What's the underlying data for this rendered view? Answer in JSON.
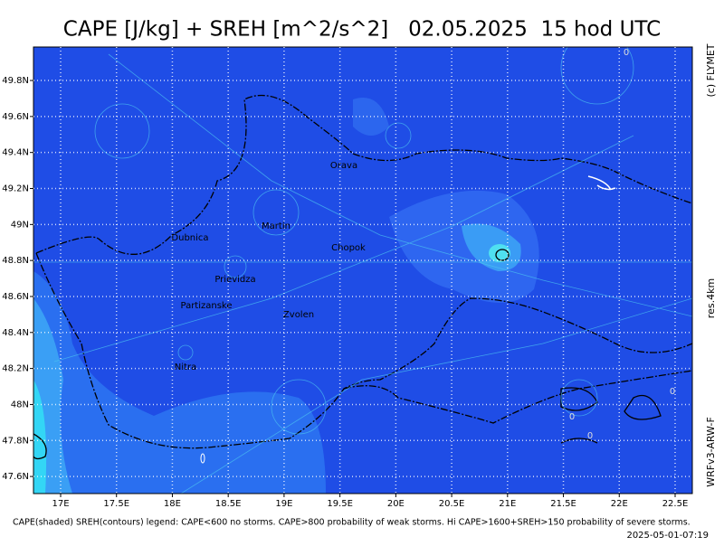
{
  "header": {
    "title": "CAPE [J/kg] + SREH [m^2/s^2]   02.05.2025  15 hod UTC"
  },
  "map": {
    "xlim": [
      16.757,
      22.654
    ],
    "ylim": [
      47.505,
      49.986
    ],
    "xticks": [
      {
        "value": 17,
        "label": "17E"
      },
      {
        "value": 17.5,
        "label": "17.5E"
      },
      {
        "value": 18,
        "label": "18E"
      },
      {
        "value": 18.5,
        "label": "18.5E"
      },
      {
        "value": 19,
        "label": "19E"
      },
      {
        "value": 19.5,
        "label": "19.5E"
      },
      {
        "value": 20,
        "label": "20E"
      },
      {
        "value": 20.5,
        "label": "20.5E"
      },
      {
        "value": 21,
        "label": "21E"
      },
      {
        "value": 21.5,
        "label": "21.5E"
      },
      {
        "value": 22,
        "label": "22E"
      },
      {
        "value": 22.5,
        "label": "22.5E"
      }
    ],
    "yticks": [
      {
        "value": 47.6,
        "label": "47.6N"
      },
      {
        "value": 47.8,
        "label": "47.8N"
      },
      {
        "value": 48,
        "label": "48N"
      },
      {
        "value": 48.2,
        "label": "48.2N"
      },
      {
        "value": 48.4,
        "label": "48.4N"
      },
      {
        "value": 48.6,
        "label": "48.6N"
      },
      {
        "value": 48.8,
        "label": "48.8N"
      },
      {
        "value": 49,
        "label": "49N"
      },
      {
        "value": 49.2,
        "label": "49.2N"
      },
      {
        "value": 49.4,
        "label": "49.4N"
      },
      {
        "value": 49.6,
        "label": "49.6N"
      },
      {
        "value": 49.8,
        "label": "49.8N"
      }
    ],
    "cities": [
      "Orava",
      "Martin",
      "Dubnica",
      "Chopok",
      "Prievidza",
      "Partizanske",
      "Zvolen",
      "Nitra"
    ],
    "contour_labels": [
      "0",
      "0",
      "0",
      "0"
    ]
  },
  "side": {
    "copyright": "(c) FLYMET",
    "resolution": "res.4km",
    "model": "WRFv3-ARW-F"
  },
  "footer": {
    "legend": "CAPE(shaded) SREH(contours) legend: CAPE<600 no storms. CAPE>800 probability of weak storms. Hi CAPE>1600+SREH>150 probability of severe storms.",
    "timestamp": "2025-05-01-07:19"
  }
}
